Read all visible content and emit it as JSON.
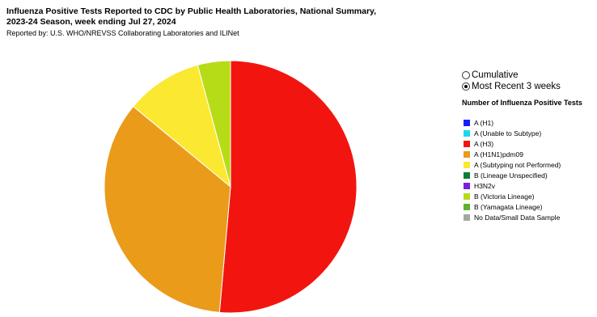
{
  "header": {
    "title_line1": "Influenza Positive Tests Reported to CDC by Public Health Laboratories, National Summary,",
    "title_line2": "2023-24 Season, week ending Jul 27, 2024",
    "reported_by": "Reported by: U.S. WHO/NREVSS Collaborating Laboratories and ILINet"
  },
  "view_options": [
    {
      "label": "Cumulative",
      "checked": false
    },
    {
      "label": "Most Recent 3 weeks",
      "checked": true
    }
  ],
  "legend": {
    "title": "Number of Influenza Positive Tests",
    "items": [
      {
        "label": "A (H1)",
        "color": "#1a1aff"
      },
      {
        "label": "A (Unable to Subtype)",
        "color": "#1ad8ec"
      },
      {
        "label": "A (H3)",
        "color": "#f2150f"
      },
      {
        "label": "A (H1N1)pdm09",
        "color": "#eb9b1a"
      },
      {
        "label": "A (Subtyping not Performed)",
        "color": "#fbe831"
      },
      {
        "label": "B (Lineage Unspecified)",
        "color": "#0d7d3a"
      },
      {
        "label": "H3N2v",
        "color": "#7a20e0"
      },
      {
        "label": "B (Victoria Lineage)",
        "color": "#b6dc18"
      },
      {
        "label": "B (Yamagata Lineage)",
        "color": "#5cb32e"
      },
      {
        "label": "No Data/Small Data Sample",
        "color": "#a6a6a6"
      }
    ]
  },
  "chart_data": {
    "type": "pie",
    "title": "Influenza Positive Tests Reported to CDC by Public Health Laboratories, National Summary, 2023-24 Season, week ending Jul 27, 2024",
    "slices": [
      {
        "label": "A (H3)",
        "value": 51.4,
        "color": "#f2150f"
      },
      {
        "label": "A (H1N1)pdm09",
        "value": 34.6,
        "color": "#eb9b1a"
      },
      {
        "label": "A (Subtyping not Performed)",
        "value": 9.8,
        "color": "#fbe831"
      },
      {
        "label": "B (Victoria Lineage)",
        "value": 4.2,
        "color": "#b6dc18"
      }
    ]
  }
}
